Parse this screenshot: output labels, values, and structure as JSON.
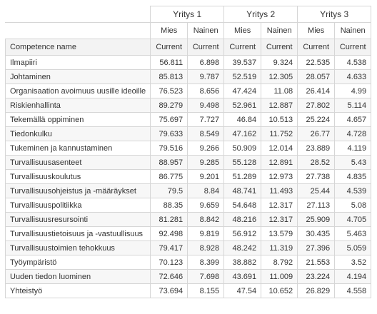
{
  "companies": [
    "Yritys 1",
    "Yritys 2",
    "Yritys 3"
  ],
  "genders": [
    "Mies",
    "Nainen",
    "Mies",
    "Nainen",
    "Mies",
    "Nainen"
  ],
  "header": {
    "name_label": "Competence name",
    "current_labels": [
      "Current",
      "Current",
      "Current",
      "Current",
      "Current",
      "Current"
    ]
  },
  "rows": [
    {
      "name": "Ilmapiiri",
      "values": [
        "56.811",
        "6.898",
        "39.537",
        "9.324",
        "22.535",
        "4.538"
      ]
    },
    {
      "name": "Johtaminen",
      "values": [
        "85.813",
        "9.787",
        "52.519",
        "12.305",
        "28.057",
        "4.633"
      ]
    },
    {
      "name": "Organisaation avoimuus uusille ideoille",
      "values": [
        "76.523",
        "8.656",
        "47.424",
        "11.08",
        "26.414",
        "4.99"
      ]
    },
    {
      "name": "Riskienhallinta",
      "values": [
        "89.279",
        "9.498",
        "52.961",
        "12.887",
        "27.802",
        "5.114"
      ]
    },
    {
      "name": "Tekemällä oppiminen",
      "values": [
        "75.697",
        "7.727",
        "46.84",
        "10.513",
        "25.224",
        "4.657"
      ]
    },
    {
      "name": "Tiedonkulku",
      "values": [
        "79.633",
        "8.549",
        "47.162",
        "11.752",
        "26.77",
        "4.728"
      ]
    },
    {
      "name": "Tukeminen ja kannustaminen",
      "values": [
        "79.516",
        "9.266",
        "50.909",
        "12.014",
        "23.889",
        "4.119"
      ]
    },
    {
      "name": "Turvallisuusasenteet",
      "values": [
        "88.957",
        "9.285",
        "55.128",
        "12.891",
        "28.52",
        "5.43"
      ]
    },
    {
      "name": "Turvallisuuskoulutus",
      "values": [
        "86.775",
        "9.201",
        "51.289",
        "12.973",
        "27.738",
        "4.835"
      ]
    },
    {
      "name": "Turvallisuusohjeistus ja -määräykset",
      "values": [
        "79.5",
        "8.84",
        "48.741",
        "11.493",
        "25.44",
        "4.539"
      ]
    },
    {
      "name": "Turvallisuuspolitiikka",
      "values": [
        "88.35",
        "9.659",
        "54.648",
        "12.317",
        "27.113",
        "5.08"
      ]
    },
    {
      "name": "Turvallisuusresursointi",
      "values": [
        "81.281",
        "8.842",
        "48.216",
        "12.317",
        "25.909",
        "4.705"
      ]
    },
    {
      "name": "Turvallisuustietoisuus ja -vastuullisuus",
      "values": [
        "92.498",
        "9.819",
        "56.912",
        "13.579",
        "30.435",
        "5.463"
      ]
    },
    {
      "name": "Turvallisuustoimien tehokkuus",
      "values": [
        "79.417",
        "8.928",
        "48.242",
        "11.319",
        "27.396",
        "5.059"
      ]
    },
    {
      "name": "Työympäristö",
      "values": [
        "70.123",
        "8.399",
        "38.882",
        "8.792",
        "21.553",
        "3.52"
      ]
    },
    {
      "name": "Uuden tiedon luominen",
      "values": [
        "72.646",
        "7.698",
        "43.691",
        "11.009",
        "23.224",
        "4.194"
      ]
    },
    {
      "name": "Yhteistyö",
      "values": [
        "73.694",
        "8.155",
        "47.54",
        "10.652",
        "26.829",
        "4.558"
      ]
    }
  ]
}
